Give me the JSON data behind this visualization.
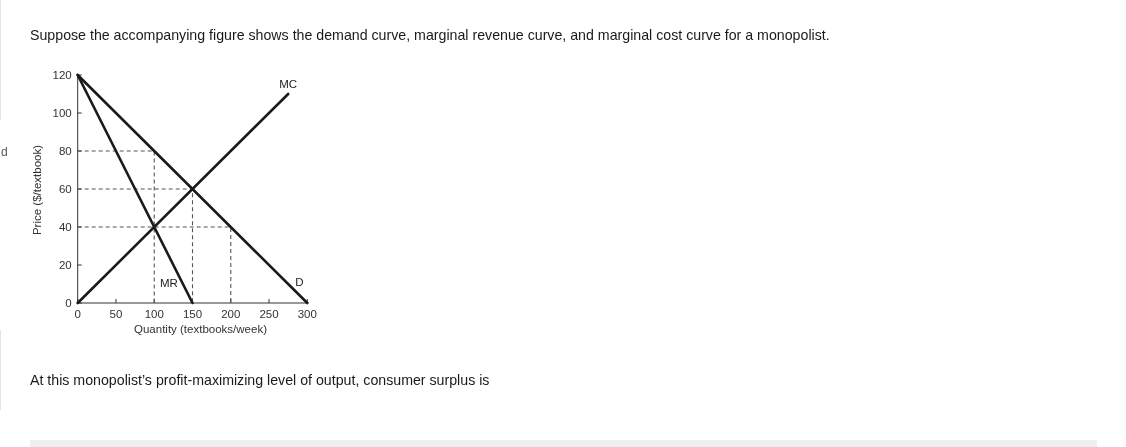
{
  "chart_data": {
    "type": "line",
    "title": "Suppose the accompanying figure shows the demand curve, marginal revenue curve, and marginal cost curve for a monopolist.",
    "xlabel": "Quantity (textbooks/week)",
    "ylabel": "Price ($/textbook)",
    "annotations": [
      "At this monopolist’s profit-maximizing level of output, consumer surplus is",
      "d"
    ],
    "xlim": [
      0,
      300
    ],
    "ylim": [
      0,
      120
    ],
    "xticks": [
      0,
      50,
      100,
      150,
      200,
      250,
      300
    ],
    "yticks": [
      0,
      20,
      40,
      60,
      80,
      100,
      120
    ],
    "series": [
      {
        "name": "D",
        "color": "#1a1a1a",
        "x": [
          0,
          300
        ],
        "values": [
          120,
          0
        ]
      },
      {
        "name": "MR",
        "color": "#1a1a1a",
        "x": [
          0,
          150
        ],
        "values": [
          120,
          0
        ]
      },
      {
        "name": "MC",
        "color": "#1a1a1a",
        "x": [
          0,
          275
        ],
        "values": [
          0,
          110
        ]
      },
      {
        "color": "#555555",
        "line_style": "dashed",
        "x": [
          0,
          100,
          100
        ],
        "values": [
          80,
          80,
          0
        ]
      },
      {
        "color": "#555555",
        "line_style": "dashed",
        "x": [
          0,
          150,
          150
        ],
        "values": [
          60,
          60,
          0
        ]
      },
      {
        "color": "#555555",
        "line_style": "dashed",
        "x": [
          0,
          200,
          200
        ],
        "values": [
          40,
          40,
          0
        ]
      }
    ]
  }
}
